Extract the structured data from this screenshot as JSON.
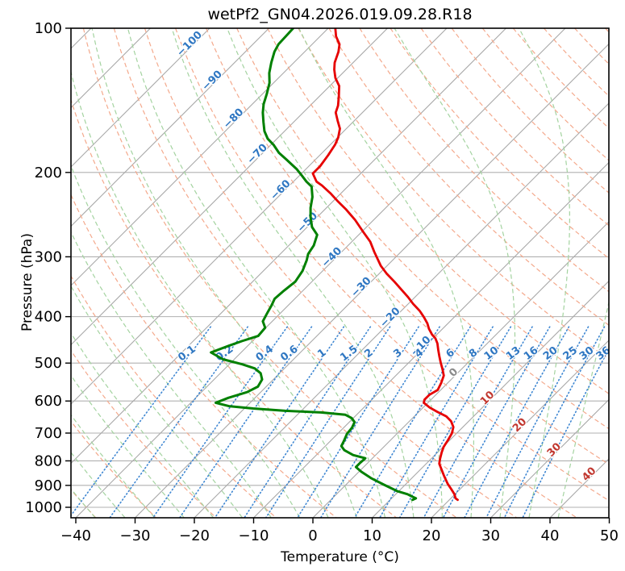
{
  "title": "wetPf2_GN04.2026.019.09.28.R18",
  "x_axis": {
    "label": "Temperature (°C)",
    "tick_values": [
      -40,
      -30,
      -20,
      -10,
      0,
      10,
      20,
      30,
      40,
      50
    ],
    "tick_labels": [
      "−40",
      "−30",
      "−20",
      "−10",
      "0",
      "10",
      "20",
      "30",
      "40",
      "50"
    ]
  },
  "y_axis": {
    "label": "Pressure (hPa)",
    "tick_values": [
      100,
      200,
      300,
      400,
      500,
      600,
      700,
      800,
      900,
      1000
    ],
    "tick_labels": [
      "100",
      "200",
      "300",
      "400",
      "500",
      "600",
      "700",
      "800",
      "900",
      "1000"
    ]
  },
  "background": {
    "pressure_gridlines": [
      100,
      200,
      300,
      400,
      500,
      600,
      700,
      800,
      900,
      1000
    ],
    "grid_color": "#b0b0b0",
    "isotherms": {
      "start": -120,
      "end": 50,
      "step": 10,
      "color": "#a8a8a8"
    },
    "isotherm_labels": [
      {
        "t": -100,
        "p": 109,
        "text": "−100",
        "color": "#2f77c2"
      },
      {
        "t": -90,
        "p": 130,
        "text": "−90",
        "color": "#2f77c2"
      },
      {
        "t": -80,
        "p": 156,
        "text": "−80",
        "color": "#2f77c2"
      },
      {
        "t": -70,
        "p": 185,
        "text": "−70",
        "color": "#2f77c2"
      },
      {
        "t": -60,
        "p": 220,
        "text": "−60",
        "color": "#2f77c2"
      },
      {
        "t": -50,
        "p": 257,
        "text": "−50",
        "color": "#2f77c2"
      },
      {
        "t": -40,
        "p": 304,
        "text": "−40",
        "color": "#2f77c2"
      },
      {
        "t": -30,
        "p": 351,
        "text": "−30",
        "color": "#2f77c2"
      },
      {
        "t": -20,
        "p": 406,
        "text": "−20",
        "color": "#2f77c2"
      },
      {
        "t": -10,
        "p": 466,
        "text": "−10",
        "color": "#2f77c2"
      },
      {
        "t": 0,
        "p": 529,
        "text": "0",
        "color": "#8a8a8a"
      },
      {
        "t": 10,
        "p": 598,
        "text": "10",
        "color": "#c1372f"
      },
      {
        "t": 20,
        "p": 681,
        "text": "20",
        "color": "#c1372f"
      },
      {
        "t": 30,
        "p": 767,
        "text": "30",
        "color": "#c1372f"
      },
      {
        "t": 40,
        "p": 862,
        "text": "40",
        "color": "#c1372f"
      }
    ],
    "dry_adiabats": {
      "start": -40,
      "end": 190,
      "step": 10,
      "color": "#f4a98c"
    },
    "moist_adiabats": {
      "start": -60,
      "end": 40,
      "step": 5,
      "color": "#a4d3a0"
    },
    "mixing_ratios": {
      "values": [
        0.1,
        0.2,
        0.4,
        0.6,
        1,
        1.5,
        2,
        3,
        4,
        6,
        8,
        10,
        13,
        16,
        20,
        25,
        30,
        36
      ],
      "labels": [
        "0.1",
        "0.2",
        "0.4",
        "0.6",
        "1",
        "1.5",
        "2",
        "3",
        "4",
        "6",
        "8",
        "10",
        "13",
        "16",
        "20",
        "25",
        "30",
        "36"
      ],
      "label_pressure": 483,
      "top_pressure": 420,
      "color": "#3f87d2",
      "label_color": "#2f77c2"
    }
  },
  "chart_data": {
    "type": "line",
    "title": "wetPf2_GN04.2026.019.09.28.R18",
    "xlabel": "Temperature (°C)",
    "ylabel": "Pressure (hPa)",
    "x_range": [
      -40,
      50
    ],
    "pressure_range": [
      100,
      1050
    ],
    "y_scale": "log",
    "skew_deg": 45,
    "series": [
      {
        "name": "temperature",
        "color": "#e60000",
        "width": 2.8,
        "points": [
          [
            100,
            -78.8
          ],
          [
            104,
            -77.3
          ],
          [
            108,
            -75.4
          ],
          [
            112,
            -74.3
          ],
          [
            118,
            -73.1
          ],
          [
            122,
            -72.0
          ],
          [
            127,
            -70.4
          ],
          [
            132,
            -68.4
          ],
          [
            138,
            -66.9
          ],
          [
            145,
            -65.3
          ],
          [
            150,
            -64.5
          ],
          [
            156,
            -62.8
          ],
          [
            162,
            -61.1
          ],
          [
            169,
            -59.9
          ],
          [
            175,
            -59.2
          ],
          [
            184,
            -58.6
          ],
          [
            194,
            -58.1
          ],
          [
            201,
            -58.1
          ],
          [
            209,
            -56.1
          ],
          [
            213,
            -54.5
          ],
          [
            221,
            -51.8
          ],
          [
            230,
            -49.1
          ],
          [
            239,
            -46.4
          ],
          [
            251,
            -43.2
          ],
          [
            265,
            -40.0
          ],
          [
            279,
            -36.9
          ],
          [
            293,
            -34.5
          ],
          [
            313,
            -31.1
          ],
          [
            325,
            -28.8
          ],
          [
            338,
            -26.1
          ],
          [
            351,
            -23.6
          ],
          [
            364,
            -21.2
          ],
          [
            376,
            -19.2
          ],
          [
            389,
            -16.9
          ],
          [
            401,
            -15.1
          ],
          [
            413,
            -13.5
          ],
          [
            424,
            -12.3
          ],
          [
            436,
            -10.8
          ],
          [
            444,
            -9.6
          ],
          [
            455,
            -8.4
          ],
          [
            469,
            -7.2
          ],
          [
            484,
            -5.9
          ],
          [
            499,
            -4.6
          ],
          [
            515,
            -3.2
          ],
          [
            531,
            -1.9
          ],
          [
            550,
            -1.1
          ],
          [
            569,
            -0.5
          ],
          [
            582,
            -1.1
          ],
          [
            596,
            -1.1
          ],
          [
            605,
            -0.7
          ],
          [
            619,
            1.1
          ],
          [
            632,
            3.1
          ],
          [
            646,
            5.4
          ],
          [
            661,
            7.0
          ],
          [
            680,
            8.4
          ],
          [
            701,
            9.2
          ],
          [
            725,
            9.7
          ],
          [
            748,
            10.1
          ],
          [
            768,
            10.7
          ],
          [
            792,
            11.5
          ],
          [
            811,
            12.2
          ],
          [
            833,
            13.5
          ],
          [
            859,
            15.0
          ],
          [
            893,
            17.0
          ],
          [
            918,
            18.6
          ],
          [
            939,
            19.9
          ],
          [
            958,
            20.8
          ],
          [
            965,
            21.4
          ]
        ]
      },
      {
        "name": "dewpoint",
        "color": "#008000",
        "width": 3.0,
        "points": [
          [
            100,
            -85.9
          ],
          [
            104,
            -85.8
          ],
          [
            108,
            -85.7
          ],
          [
            112,
            -85.1
          ],
          [
            118,
            -83.8
          ],
          [
            124,
            -82.4
          ],
          [
            130,
            -80.7
          ],
          [
            137,
            -79.3
          ],
          [
            144,
            -78.1
          ],
          [
            150,
            -76.8
          ],
          [
            157,
            -75.1
          ],
          [
            164,
            -73.4
          ],
          [
            170,
            -71.6
          ],
          [
            175,
            -69.6
          ],
          [
            182,
            -67.3
          ],
          [
            188,
            -64.9
          ],
          [
            197,
            -61.5
          ],
          [
            203,
            -59.6
          ],
          [
            209,
            -57.8
          ],
          [
            214,
            -56.1
          ],
          [
            225,
            -54.2
          ],
          [
            237,
            -52.7
          ],
          [
            248,
            -51.1
          ],
          [
            260,
            -49.2
          ],
          [
            270,
            -47.0
          ],
          [
            284,
            -45.8
          ],
          [
            296,
            -45.3
          ],
          [
            305,
            -44.5
          ],
          [
            321,
            -43.4
          ],
          [
            338,
            -42.8
          ],
          [
            353,
            -43.2
          ],
          [
            367,
            -43.4
          ],
          [
            379,
            -42.8
          ],
          [
            394,
            -42.2
          ],
          [
            409,
            -41.6
          ],
          [
            422,
            -40.1
          ],
          [
            439,
            -39.9
          ],
          [
            450,
            -41.8
          ],
          [
            460,
            -43.2
          ],
          [
            475,
            -45.1
          ],
          [
            491,
            -41.9
          ],
          [
            503,
            -37.8
          ],
          [
            513,
            -35.0
          ],
          [
            525,
            -33.2
          ],
          [
            541,
            -31.9
          ],
          [
            560,
            -31.4
          ],
          [
            575,
            -32.3
          ],
          [
            591,
            -34.5
          ],
          [
            605,
            -35.8
          ],
          [
            615,
            -33.0
          ],
          [
            622,
            -28.5
          ],
          [
            629,
            -22.7
          ],
          [
            634,
            -16.4
          ],
          [
            641,
            -11.9
          ],
          [
            651,
            -10.3
          ],
          [
            664,
            -9.1
          ],
          [
            682,
            -8.6
          ],
          [
            703,
            -8.4
          ],
          [
            728,
            -7.7
          ],
          [
            745,
            -7.3
          ],
          [
            760,
            -6.1
          ],
          [
            778,
            -3.8
          ],
          [
            790,
            -1.2
          ],
          [
            808,
            -1.3
          ],
          [
            824,
            -1.3
          ],
          [
            843,
            0.4
          ],
          [
            869,
            3.1
          ],
          [
            897,
            6.4
          ],
          [
            925,
            9.7
          ],
          [
            939,
            12.0
          ],
          [
            950,
            13.2
          ],
          [
            958,
            14.1
          ],
          [
            965,
            13.8
          ]
        ]
      }
    ]
  }
}
